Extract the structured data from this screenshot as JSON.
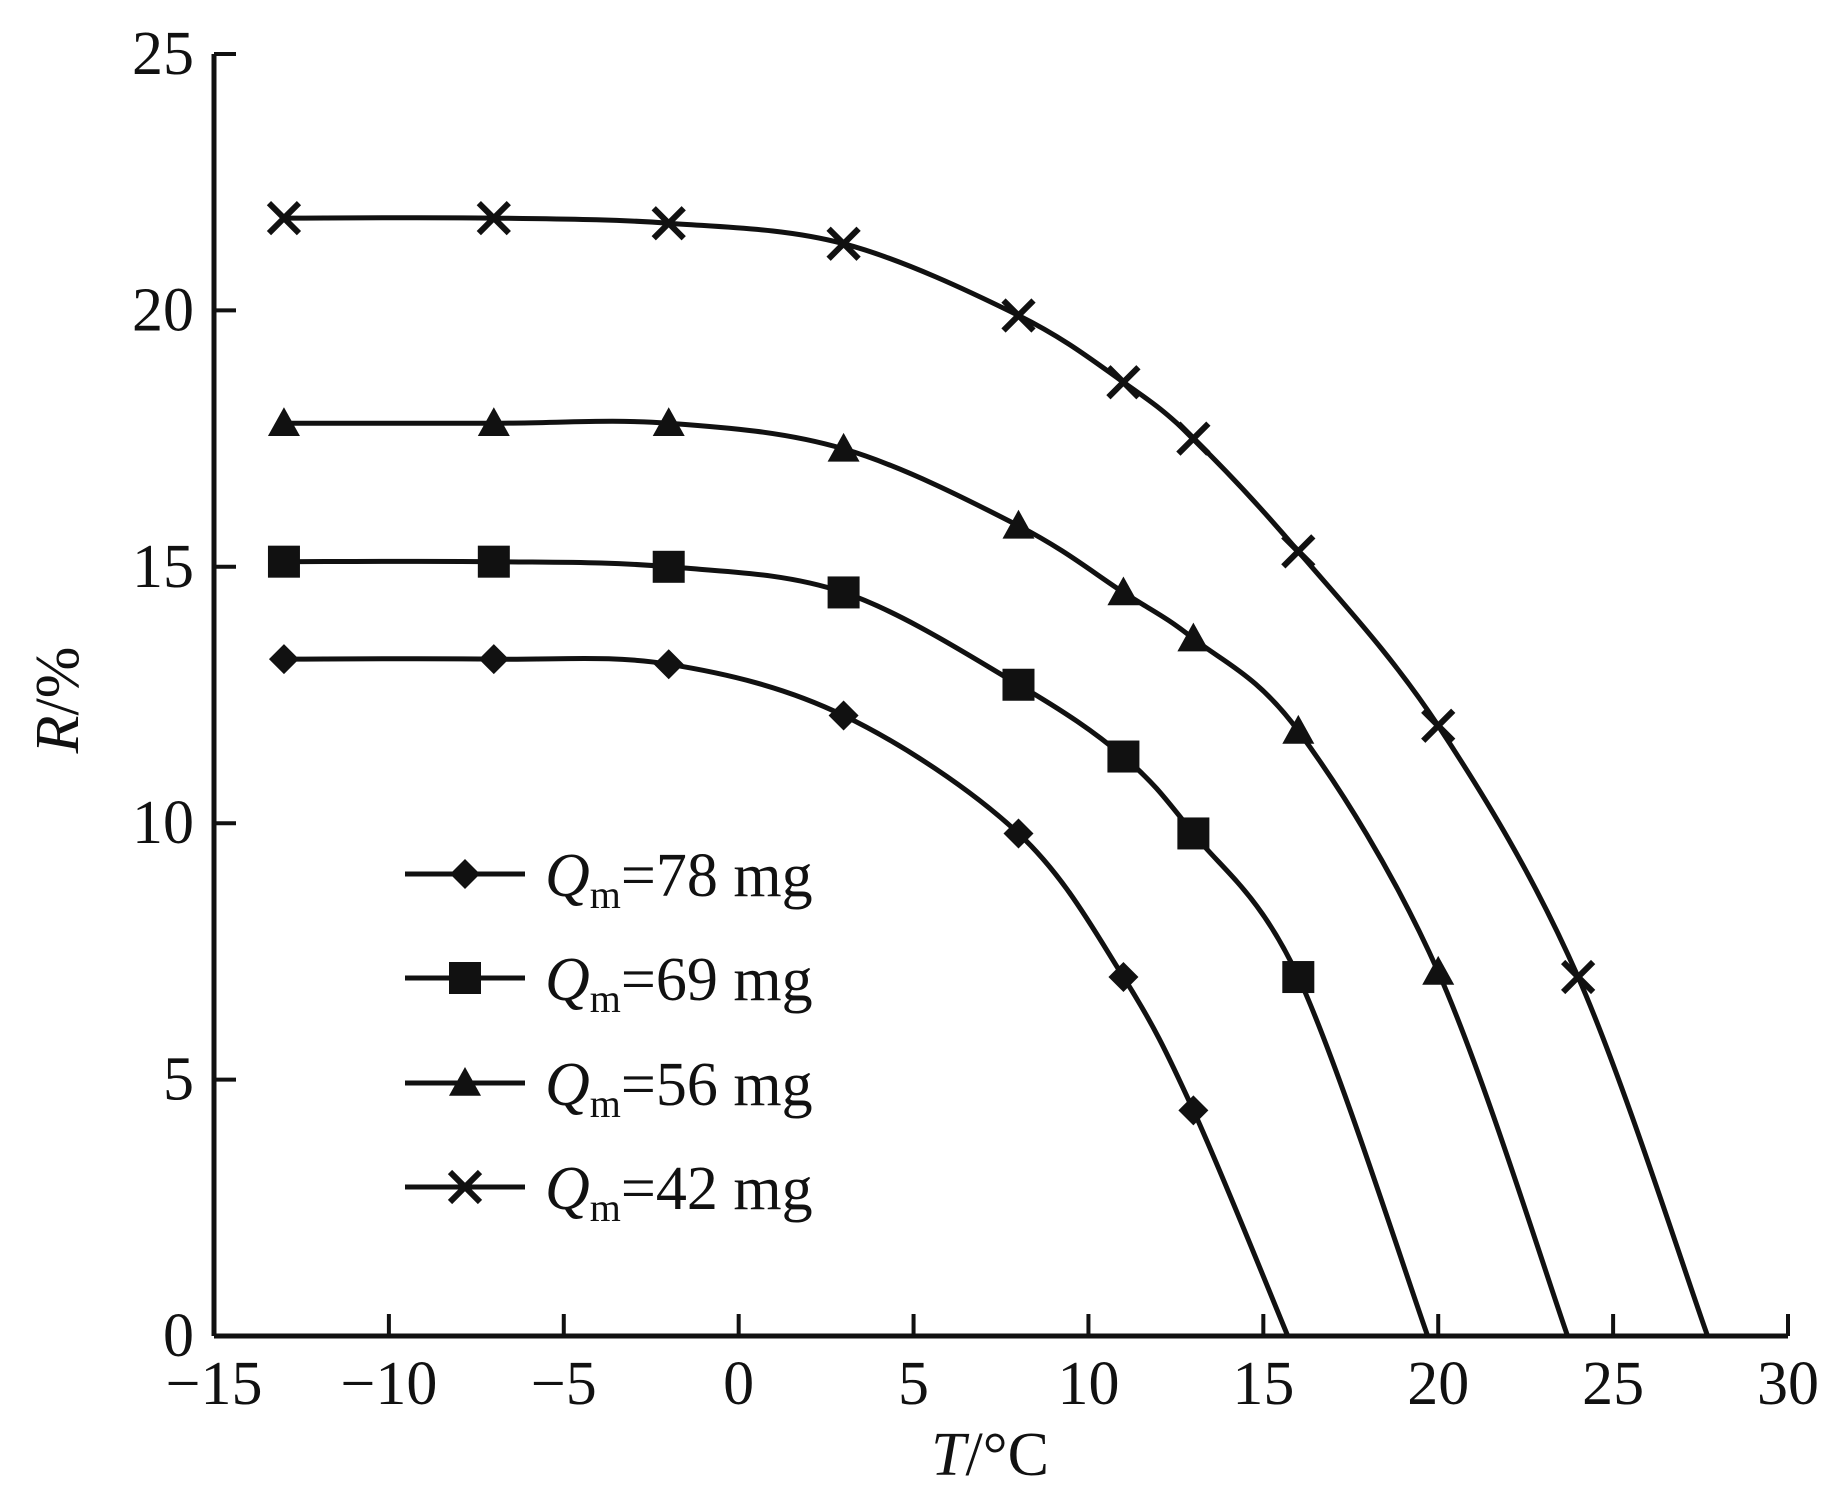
{
  "chart_data": {
    "type": "line",
    "title": "",
    "xlabel": "T/°C",
    "ylabel": "R/%",
    "xlabel_var": "T",
    "xlabel_unit": "/°C",
    "ylabel_var": "R",
    "ylabel_unit": "/%",
    "xlim": [
      -15,
      30
    ],
    "ylim": [
      0,
      25
    ],
    "xticks": [
      -15,
      -10,
      -5,
      0,
      5,
      10,
      15,
      20,
      25,
      30
    ],
    "yticks": [
      0,
      5,
      10,
      15,
      20,
      25
    ],
    "xtick_labels": [
      "−15",
      "−10",
      "−5",
      "0",
      "5",
      "10",
      "15",
      "20",
      "25",
      "30"
    ],
    "ytick_labels": [
      "0",
      "5",
      "10",
      "15",
      "20",
      "25"
    ],
    "grid": false,
    "legend_position": "bottom-left",
    "color": "#111111",
    "series": [
      {
        "name": "Qm=78 mg",
        "label_var": "Q",
        "label_sub": "m",
        "label_rest": "=78 mg",
        "marker": "diamond",
        "x": [
          -13,
          -7,
          -2,
          3,
          8,
          11,
          13
        ],
        "y": [
          13.2,
          13.2,
          13.1,
          12.1,
          9.8,
          7.0,
          4.4
        ],
        "end": [
          15.7,
          0
        ]
      },
      {
        "name": "Qm=69 mg",
        "label_var": "Q",
        "label_sub": "m",
        "label_rest": "=69 mg",
        "marker": "square",
        "x": [
          -13,
          -7,
          -2,
          3,
          8,
          11,
          13,
          16
        ],
        "y": [
          15.1,
          15.1,
          15.0,
          14.5,
          12.7,
          11.3,
          9.8,
          7.0
        ],
        "end": [
          19.7,
          0
        ]
      },
      {
        "name": "Qm=56 mg",
        "label_var": "Q",
        "label_sub": "m",
        "label_rest": "=56 mg",
        "marker": "triangle",
        "x": [
          -13,
          -7,
          -2,
          3,
          8,
          11,
          13,
          16,
          20
        ],
        "y": [
          17.8,
          17.8,
          17.8,
          17.3,
          15.8,
          14.5,
          13.6,
          11.8,
          7.1
        ],
        "end": [
          23.7,
          0
        ]
      },
      {
        "name": "Qm=42 mg",
        "label_var": "Q",
        "label_sub": "m",
        "label_rest": "=42 mg",
        "marker": "x",
        "x": [
          -13,
          -7,
          -2,
          3,
          8,
          11,
          13,
          16,
          20,
          24
        ],
        "y": [
          21.8,
          21.8,
          21.7,
          21.3,
          19.9,
          18.6,
          17.5,
          15.3,
          11.9,
          7.0
        ],
        "end": [
          27.7,
          0
        ]
      }
    ]
  }
}
